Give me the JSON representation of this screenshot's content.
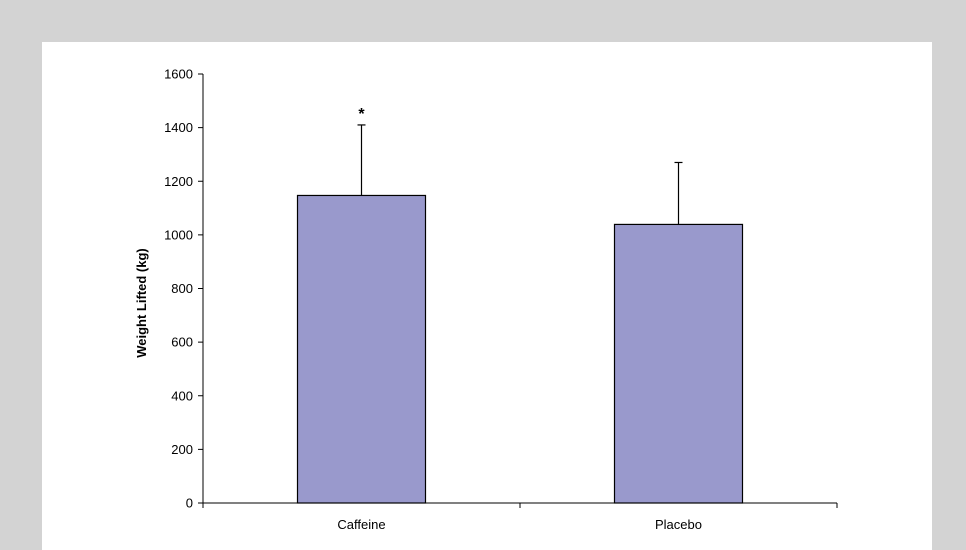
{
  "chart_data": {
    "type": "bar",
    "categories": [
      "Caffeine",
      "Placebo"
    ],
    "values": [
      1147,
      1039
    ],
    "error_upper": [
      1410,
      1270
    ],
    "annotations": [
      "*",
      ""
    ],
    "ylabel": "Weight Lifted (kg)",
    "xlabel": "",
    "ylim": [
      0,
      1600
    ],
    "yticks": [
      0,
      200,
      400,
      600,
      800,
      1000,
      1200,
      1400,
      1600
    ],
    "grid": false,
    "bar_color": "#9999cc",
    "background": "#d3d3d3",
    "panel_color": "#ffffff"
  }
}
